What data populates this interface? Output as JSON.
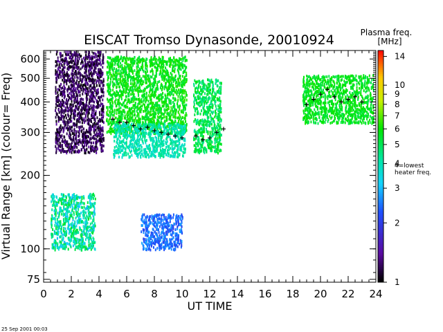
{
  "chart_data": {
    "type": "heatmap",
    "title": "EISCAT Tromso Dynasonde,  20010924",
    "xlabel": "UT TIME",
    "ylabel": "Virtual Range [km]   (colour= Freq)",
    "x_ticks": [
      "0",
      "2",
      "4",
      "6",
      "8",
      "10",
      "12",
      "14",
      "16",
      "18",
      "20",
      "22",
      "24"
    ],
    "y_ticks": [
      "75",
      "100",
      "200",
      "300",
      "400",
      "500",
      "600"
    ],
    "xlim": [
      0,
      24
    ],
    "ylim": [
      73,
      650
    ],
    "y_scale": "log",
    "colorbar": {
      "title_line1": "Plasma freq.",
      "title_line2": "[MHz]",
      "ticks": [
        "1",
        "2",
        "3",
        "4",
        "5",
        "6",
        "7",
        "8",
        "9",
        "10",
        "14"
      ],
      "range": [
        1,
        15
      ],
      "scale": "log",
      "annotation_line1": "4=lowest",
      "annotation_line2": "heater freq."
    },
    "regions": [
      {
        "x": [
          0.5,
          3.7
        ],
        "y": [
          100,
          170
        ],
        "freq": [
          2.8,
          5.5
        ]
      },
      {
        "x": [
          0.8,
          4.3
        ],
        "y": [
          250,
          650
        ],
        "freq": [
          1.0,
          1.4
        ]
      },
      {
        "x": [
          4.5,
          10.3
        ],
        "y": [
          300,
          620
        ],
        "freq": [
          5.0,
          6.5
        ]
      },
      {
        "x": [
          5.0,
          10.2
        ],
        "y": [
          240,
          330
        ],
        "freq": [
          3.5,
          4.5
        ]
      },
      {
        "x": [
          7.0,
          10.0
        ],
        "y": [
          100,
          140
        ],
        "freq": [
          2.0,
          2.8
        ]
      },
      {
        "x": [
          10.8,
          12.8
        ],
        "y": [
          250,
          500
        ],
        "freq": [
          4.2,
          5.8
        ]
      },
      {
        "x": [
          18.7,
          23.8
        ],
        "y": [
          330,
          520
        ],
        "freq": [
          5.0,
          6.2
        ]
      }
    ],
    "traces": [
      {
        "name": "",
        "x": [
          5.0,
          5.5,
          6.0,
          6.5,
          7.0,
          7.5,
          8.0,
          8.5,
          9.0,
          9.5,
          10.0
        ],
        "y": [
          340,
          330,
          330,
          320,
          310,
          315,
          305,
          300,
          295,
          290,
          285
        ]
      },
      {
        "name": "",
        "x": [
          11.0,
          11.5,
          12.0,
          12.5,
          13.0
        ],
        "y": [
          290,
          280,
          285,
          300,
          310
        ]
      },
      {
        "name": "",
        "x": [
          19.0,
          19.5,
          20.0,
          20.5,
          21.0,
          21.5,
          22.0,
          22.5,
          23.0
        ],
        "y": [
          390,
          410,
          430,
          450,
          420,
          400,
          410,
          420,
          400
        ]
      }
    ]
  },
  "timestamp": "25 Sep 2001 00:03"
}
